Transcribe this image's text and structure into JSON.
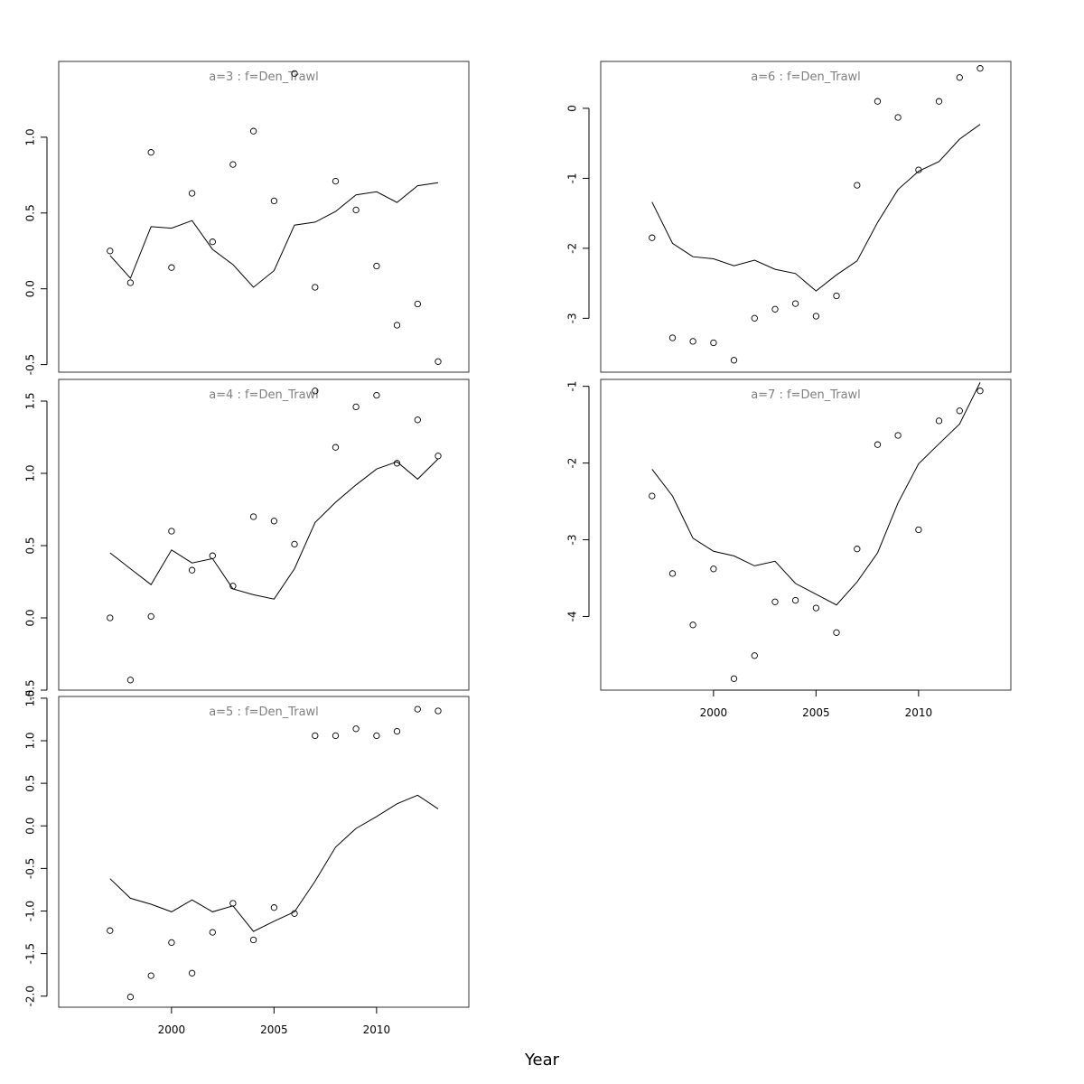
{
  "chart_data": {
    "type": "line",
    "xlabel": "Year",
    "years": [
      1997,
      1998,
      1999,
      2000,
      2001,
      2002,
      2003,
      2004,
      2005,
      2006,
      2007,
      2008,
      2009,
      2010,
      2011,
      2012,
      2013
    ],
    "x_ticks": [
      2000,
      2005,
      2010
    ],
    "x_tick_labels": [
      "2000",
      "2005",
      "2010"
    ],
    "xlim": [
      1994.5,
      2014.5
    ],
    "series_encoding": {
      "observed": "open circles",
      "fitted": "line"
    },
    "panels": [
      {
        "title": "a=3  :  f=Den_Trawl",
        "ylim": [
          -0.55,
          1.5
        ],
        "y_ticks": [
          -0.5,
          0.0,
          0.5,
          1.0
        ],
        "y_tick_labels": [
          "-0.5",
          "0.0",
          "0.5",
          "1.0"
        ],
        "x_axis_shown": false,
        "observed": [
          0.25,
          0.04,
          0.9,
          0.14,
          0.63,
          0.31,
          0.82,
          1.04,
          0.58,
          1.42,
          0.01,
          0.71,
          0.52,
          0.15,
          -0.24,
          -0.1,
          -0.48
        ],
        "fitted": [
          0.22,
          0.07,
          0.41,
          0.4,
          0.45,
          0.26,
          0.16,
          0.01,
          0.12,
          0.42,
          0.44,
          0.51,
          0.62,
          0.64,
          0.57,
          0.68,
          0.7
        ]
      },
      {
        "title": "a=4  :  f=Den_Trawl",
        "ylim": [
          -0.5,
          1.65
        ],
        "y_ticks": [
          -0.5,
          0.0,
          0.5,
          1.0,
          1.5
        ],
        "y_tick_labels": [
          "-0.5",
          "0.0",
          "0.5",
          "1.0",
          "1.5"
        ],
        "x_axis_shown": false,
        "observed": [
          0.0,
          -0.43,
          0.01,
          0.6,
          0.33,
          0.43,
          0.22,
          0.7,
          0.67,
          0.51,
          1.57,
          1.18,
          1.46,
          1.54,
          1.07,
          1.37,
          1.12
        ],
        "fitted": [
          0.45,
          0.34,
          0.23,
          0.47,
          0.38,
          0.41,
          0.2,
          0.16,
          0.13,
          0.34,
          0.66,
          0.8,
          0.92,
          1.03,
          1.08,
          0.96,
          1.1
        ]
      },
      {
        "title": "a=5  :  f=Den_Trawl",
        "ylim": [
          -2.13,
          1.52
        ],
        "y_ticks": [
          -2.0,
          -1.5,
          -1.0,
          -0.5,
          0.0,
          0.5,
          1.0,
          1.5
        ],
        "y_tick_labels": [
          "-2.0",
          "-1.5",
          "-1.0",
          "-0.5",
          "0.0",
          "0.5",
          "1.0",
          "1.5"
        ],
        "x_axis_shown": true,
        "observed": [
          -1.23,
          -2.01,
          -1.76,
          -1.37,
          -1.73,
          -1.25,
          -0.91,
          -1.34,
          -0.96,
          -1.03,
          1.06,
          1.06,
          1.14,
          1.06,
          1.11,
          1.37,
          1.35
        ],
        "fitted": [
          -0.62,
          -0.85,
          -0.92,
          -1.01,
          -0.87,
          -1.01,
          -0.94,
          -1.24,
          -1.12,
          -1.01,
          -0.65,
          -0.25,
          -0.03,
          0.11,
          0.26,
          0.36,
          0.2
        ]
      },
      {
        "title": "a=6  :  f=Den_Trawl",
        "ylim": [
          -3.77,
          0.67
        ],
        "y_ticks": [
          -3,
          -2,
          -1,
          0
        ],
        "y_tick_labels": [
          "-3",
          "-2",
          "-1",
          "0"
        ],
        "x_axis_shown": false,
        "observed": [
          -1.85,
          -3.28,
          -3.33,
          -3.35,
          -3.6,
          -3.0,
          -2.87,
          -2.79,
          -2.97,
          -2.68,
          -1.1,
          0.1,
          -0.13,
          -0.88,
          0.1,
          0.44,
          0.57
        ],
        "fitted": [
          -1.34,
          -1.93,
          -2.12,
          -2.15,
          -2.25,
          -2.17,
          -2.3,
          -2.36,
          -2.61,
          -2.38,
          -2.18,
          -1.63,
          -1.16,
          -0.9,
          -0.76,
          -0.44,
          -0.23
        ]
      },
      {
        "title": "a=7  :  f=Den_Trawl",
        "ylim": [
          -4.96,
          -0.91
        ],
        "y_ticks": [
          -4,
          -3,
          -2,
          -1
        ],
        "y_tick_labels": [
          "-4",
          "-3",
          "-2",
          "-1"
        ],
        "x_axis_shown": true,
        "observed": [
          -2.43,
          -3.44,
          -4.11,
          -3.38,
          -4.81,
          -4.51,
          -3.81,
          -3.79,
          -3.89,
          -4.21,
          -3.12,
          -1.76,
          -1.64,
          -2.87,
          -1.45,
          -1.32,
          -1.06
        ],
        "fitted": [
          -2.08,
          -2.43,
          -2.98,
          -3.15,
          -3.21,
          -3.34,
          -3.28,
          -3.57,
          -3.71,
          -3.85,
          -3.55,
          -3.17,
          -2.52,
          -2.01,
          -1.75,
          -1.49,
          -0.95
        ]
      }
    ]
  }
}
